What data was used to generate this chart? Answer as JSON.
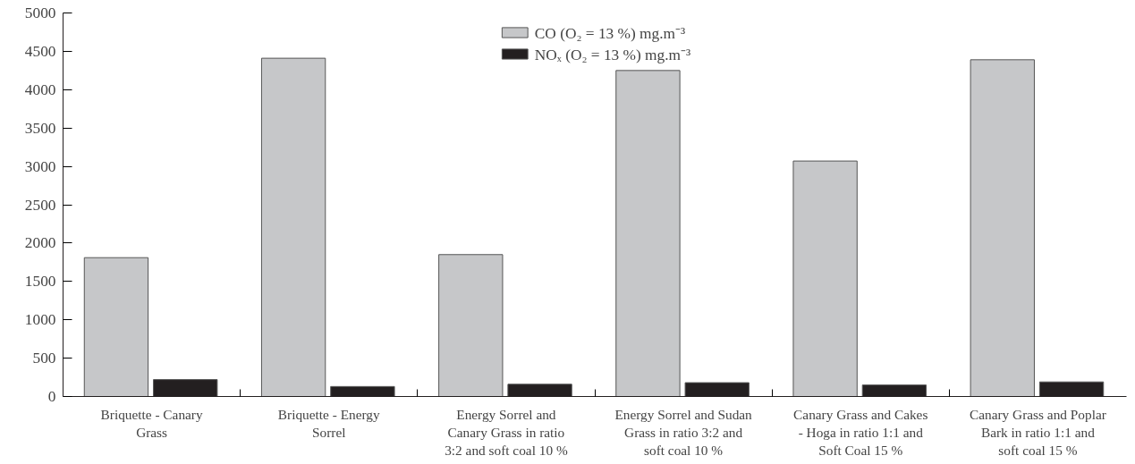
{
  "chart_data": {
    "type": "bar",
    "categories": [
      "Briquette - Canary Grass",
      "Briquette - Energy Sorrel",
      "Energy Sorrel and Canary Grass in ratio 3:2 and soft coal 10 %",
      "Energy Sorrel and Sudan Grass in ratio 3:2 and soft coal 10 %",
      "Canary Grass and Cakes - Hoga in ratio 1:1 and Soft Coal 15 %",
      "Canary Grass and Poplar Bark in ratio 1:1 and soft coal 15 %"
    ],
    "series": [
      {
        "name": "CO (O₂ = 13 %) mg.m⁻³",
        "color": "#c6c7c9",
        "values": [
          1810,
          4410,
          1850,
          4250,
          3070,
          4390
        ]
      },
      {
        "name": "NOₓ (O₂ = 13 %) mg.m⁻³",
        "color": "#231f20",
        "values": [
          220,
          130,
          160,
          180,
          150,
          190
        ]
      }
    ],
    "ylim": [
      0,
      5000
    ],
    "yticks": [
      0,
      500,
      1000,
      1500,
      2000,
      2500,
      3000,
      3500,
      4000,
      4500,
      5000
    ],
    "grid": false,
    "legend": "top"
  }
}
